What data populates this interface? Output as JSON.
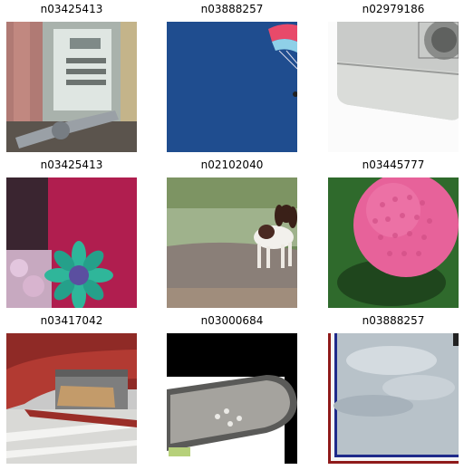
{
  "grid": {
    "tiles": [
      {
        "label": "n03425413",
        "image": "gas-pump-closeup"
      },
      {
        "label": "n03888257",
        "image": "parachute-blue-sky"
      },
      {
        "label": "n02979186",
        "image": "cassette-player-grey"
      },
      {
        "label": "n03425413",
        "image": "pink-wall-flower"
      },
      {
        "label": "n02102040",
        "image": "springer-spaniel-dog"
      },
      {
        "label": "n03445777",
        "image": "pink-golf-ball-grass"
      },
      {
        "label": "n03417042",
        "image": "garbage-truck-street"
      },
      {
        "label": "n03000684",
        "image": "chainsaw-bar"
      },
      {
        "label": "n03888257",
        "image": "sky-clouds-border"
      }
    ]
  }
}
